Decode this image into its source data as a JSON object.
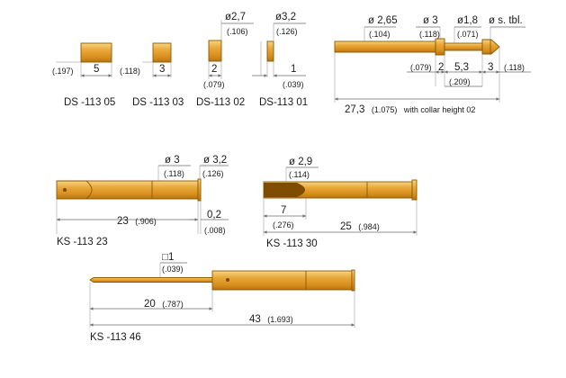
{
  "parts": {
    "ds05": {
      "label": "DS -113 05",
      "len": "5",
      "dia": "(.197)"
    },
    "ds03": {
      "label": "DS -113 03",
      "len": "3",
      "dia": "(.118)"
    },
    "ds02": {
      "label": "DS-113 02",
      "len": "2",
      "len_in": "(.079)",
      "dia": "ø2,7",
      "dia_in": "(.106)"
    },
    "ds01": {
      "label": "DS-113 01",
      "len": "1",
      "len_in": "(.039)",
      "dia": "ø3,2",
      "dia_in": "(.126)"
    },
    "pin": {
      "d1": "ø 2,65",
      "d1_in": "(.104)",
      "d2": "ø 3",
      "d2_in": "(.118)",
      "d3": "ø1,8",
      "d3_in": "(.071)",
      "d4": "ø s. tbl.",
      "l_079": "(.079)",
      "l_2": "2",
      "l_53": "5,3",
      "l_209": "(.209)",
      "l_3": "3",
      "l_118": "(.118)",
      "total": "27,3",
      "total_in": "(1.075)",
      "total_note": "with collar height 02"
    },
    "ks23": {
      "label": "KS -113 23",
      "d1": "ø 3",
      "d1_in": "(.118)",
      "d2": "ø 3,2",
      "d2_in": "(.126)",
      "len": "23",
      "len_in": "(.906)",
      "gap": "0,2",
      "gap_in": "(.008)"
    },
    "ks30": {
      "label": "KS -113 30",
      "d": "ø 2,9",
      "d_in": "(.114)",
      "tip": "7",
      "tip_in": "(.276)",
      "len": "25",
      "len_in": "(.984)"
    },
    "ks46": {
      "label": "KS -113 46",
      "sq": "□1",
      "sq_in": "(.039)",
      "l1": "20",
      "l1_in": "(.787)",
      "len": "43",
      "len_in": "(1.693)"
    }
  }
}
